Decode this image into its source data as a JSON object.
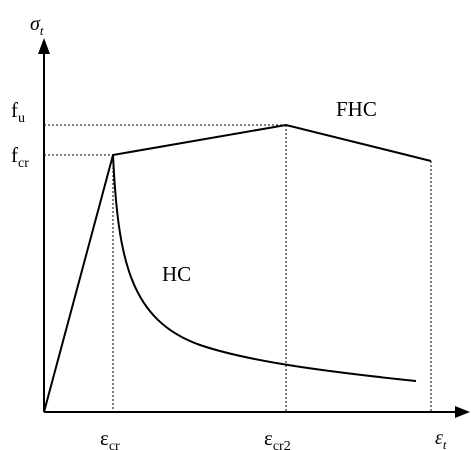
{
  "chart_data": {
    "type": "line",
    "axes": {
      "y_symbol": "σ",
      "y_subscript": "t",
      "x_symbol": "ε",
      "x_subscript": "t"
    },
    "y_ticks": [
      {
        "base": "f",
        "sub": "u"
      },
      {
        "base": "f",
        "sub": "cr"
      }
    ],
    "x_ticks": [
      {
        "base": "ε",
        "sub": "cr"
      },
      {
        "base": "ε",
        "sub": "cr2"
      }
    ],
    "series": [
      {
        "name": "FHC"
      },
      {
        "name": "HC"
      }
    ],
    "stroke_color": "#000000",
    "guide_style": "dotted"
  }
}
